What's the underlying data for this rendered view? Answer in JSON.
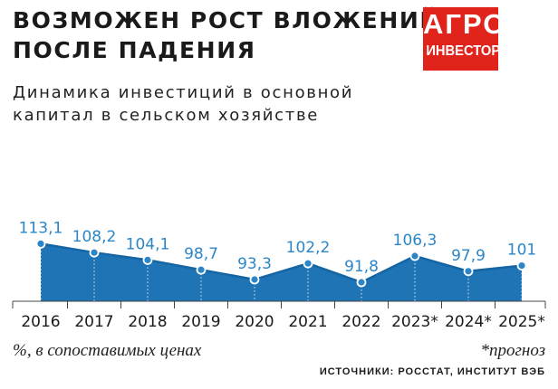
{
  "header": {
    "title_line1": "ВОЗМОЖЕН РОСТ ВЛОЖЕНИЙ",
    "title_line2": "ПОСЛЕ ПАДЕНИЯ",
    "subtitle_line1": "Динамика инвестиций в основной",
    "subtitle_line2": "капитал в сельском хозяйстве"
  },
  "logo": {
    "line1": "АГРО",
    "line2": "ИНВЕСТОР"
  },
  "colors": {
    "area_fill": "#1f74b6",
    "line": "#1565a3",
    "marker": "#2b86c8",
    "label": "#2b86c8",
    "logo_bg": "#e0241b"
  },
  "chart_data": {
    "type": "area",
    "title": "",
    "xlabel": "",
    "ylabel": "",
    "categories": [
      "2016",
      "2017",
      "2018",
      "2019",
      "2020",
      "2021",
      "2022",
      "2023*",
      "2024*",
      "2025*"
    ],
    "values": [
      113.1,
      108.2,
      104.1,
      98.7,
      93.3,
      102.2,
      91.8,
      106.3,
      97.9,
      101
    ],
    "value_labels": [
      "113,1",
      "108,2",
      "104,1",
      "98,7",
      "93,3",
      "102,2",
      "91,8",
      "106,3",
      "97,9",
      "101"
    ],
    "grid": false,
    "legend": "none"
  },
  "footer": {
    "units_note": "%, в сопоставимых ценах",
    "forecast_note": "*прогноз",
    "source": "ИСТОЧНИКИ: РОССТАТ, ИНСТИТУТ ВЭБ"
  }
}
